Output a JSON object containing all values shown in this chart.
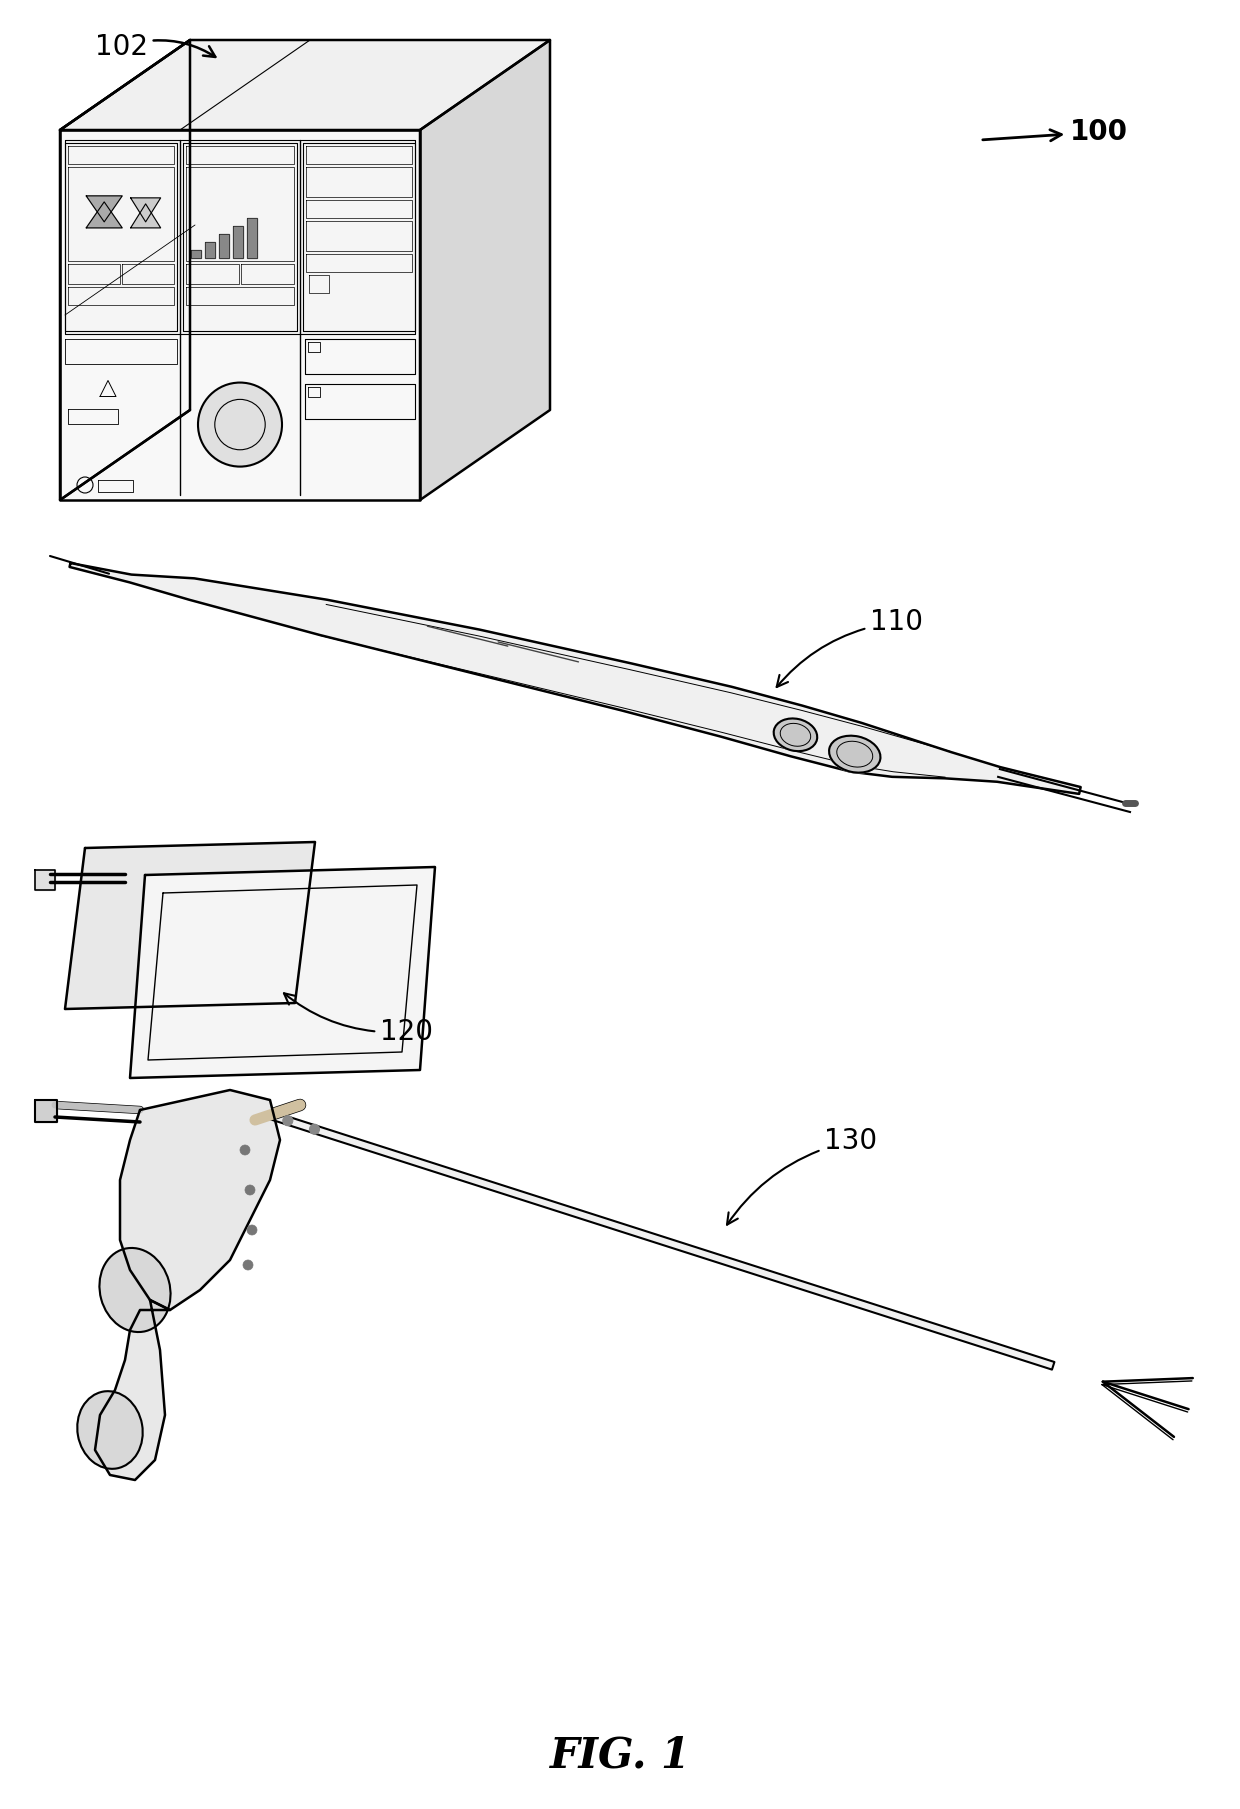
{
  "bg_color": "#ffffff",
  "line_color": "#000000",
  "fig_label": "FIG. 1",
  "fig_label_fontsize": 30,
  "fig_label_fontweight": "bold",
  "label_fontsize": 20,
  "box_label": "102",
  "system_label": "100",
  "pen_label": "110",
  "pad_label": "120",
  "grasper_label": "130"
}
